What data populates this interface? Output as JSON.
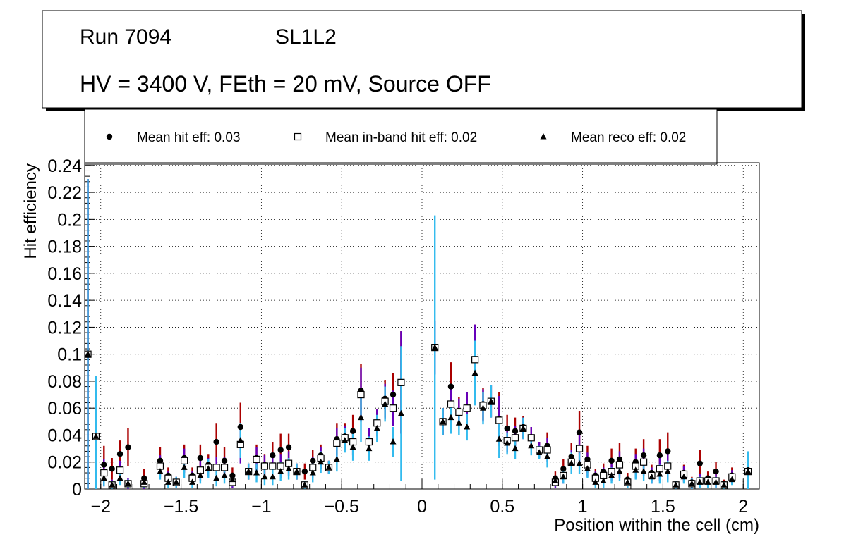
{
  "title_box": {
    "line1_left": "Run 7094",
    "line1_right": "SL1L2",
    "line2": "HV = 3400 V, FEth = 20 mV, Source OFF"
  },
  "chart_data": {
    "type": "scatter",
    "xlabel": "Position within the cell (cm)",
    "ylabel": "Hit efficiency",
    "xlim": [
      -2.1,
      2.1
    ],
    "ylim": [
      0,
      0.242
    ],
    "grid": true,
    "x_ticks": [
      -2,
      -1.5,
      -1,
      -0.5,
      0,
      0.5,
      1,
      1.5,
      2
    ],
    "x_tick_labels": [
      "−2",
      "−1.5",
      "−1",
      "−0.5",
      "0",
      "0.5",
      "1",
      "1.5",
      "2"
    ],
    "y_ticks": [
      0,
      0.02,
      0.04,
      0.06,
      0.08,
      0.1,
      0.12,
      0.14,
      0.16,
      0.18,
      0.2,
      0.22,
      0.24
    ],
    "y_tick_labels": [
      "0",
      "0.02",
      "0.04",
      "0.06",
      "0.08",
      "0.1",
      "0.12",
      "0.14",
      "0.16",
      "0.18",
      "0.2",
      "0.22",
      "0.24"
    ],
    "legend": {
      "position": "top",
      "entries": [
        {
          "marker": "circle",
          "label": "Mean hit  eff: 0.03"
        },
        {
          "marker": "open-square",
          "label": "Mean in-band hit eff: 0.02"
        },
        {
          "marker": "triangle",
          "label": "Mean reco eff: 0.02"
        }
      ]
    },
    "series": [
      {
        "name": "Mean hit eff",
        "marker": "circle",
        "color": "#000000",
        "error_color": "#aa0000",
        "x": [
          -2.08,
          -2.03,
          -1.98,
          -1.93,
          -1.88,
          -1.83,
          -1.73,
          -1.63,
          -1.58,
          -1.53,
          -1.48,
          -1.43,
          -1.38,
          -1.33,
          -1.28,
          -1.23,
          -1.18,
          -1.13,
          -1.08,
          -1.03,
          -0.98,
          -0.93,
          -0.88,
          -0.83,
          -0.78,
          -0.73,
          -0.68,
          -0.63,
          -0.58,
          -0.53,
          -0.48,
          -0.43,
          -0.38,
          -0.33,
          -0.28,
          -0.23,
          -0.18,
          -0.13,
          0.08,
          0.13,
          0.18,
          0.23,
          0.28,
          0.33,
          0.38,
          0.43,
          0.48,
          0.53,
          0.58,
          0.63,
          0.68,
          0.73,
          0.78,
          0.83,
          0.88,
          0.93,
          0.98,
          1.03,
          1.08,
          1.13,
          1.18,
          1.23,
          1.28,
          1.33,
          1.38,
          1.43,
          1.48,
          1.53,
          1.58,
          1.63,
          1.68,
          1.73,
          1.78,
          1.83,
          1.88,
          1.93,
          2.03
        ],
        "y": [
          0.1,
          0.039,
          0.018,
          0.015,
          0.026,
          0.031,
          0.008,
          0.021,
          0.01,
          0.005,
          0.023,
          0.01,
          0.023,
          0.018,
          0.035,
          0.021,
          0.01,
          0.046,
          0.013,
          0.023,
          0.018,
          0.025,
          0.029,
          0.031,
          0.013,
          0.013,
          0.021,
          0.025,
          0.016,
          0.037,
          0.039,
          0.043,
          0.073,
          0.034,
          0.049,
          0.067,
          0.07,
          0.079,
          0.105,
          0.05,
          0.076,
          0.058,
          0.06,
          0.096,
          0.063,
          0.065,
          0.052,
          0.045,
          0.043,
          0.046,
          0.038,
          0.029,
          0.032,
          0.008,
          0.015,
          0.024,
          0.042,
          0.022,
          0.01,
          0.013,
          0.021,
          0.022,
          0.007,
          0.02,
          0.025,
          0.012,
          0.025,
          0.028,
          0.003,
          0.012,
          0.005,
          0.019,
          0.008,
          0.013,
          0.004,
          0.01,
          0.014
        ],
        "err": [
          0.13,
          0.01,
          0.014,
          0.008,
          0.01,
          0.014,
          0.007,
          0.01,
          0.006,
          0.004,
          0.01,
          0.006,
          0.01,
          0.008,
          0.014,
          0.01,
          0.006,
          0.018,
          0.006,
          0.01,
          0.008,
          0.01,
          0.012,
          0.01,
          0.006,
          0.006,
          0.008,
          0.008,
          0.005,
          0.012,
          0.01,
          0.012,
          0.02,
          0.01,
          0.01,
          0.014,
          0.016,
          0.038,
          0.02,
          0.01,
          0.018,
          0.01,
          0.012,
          0.026,
          0.012,
          0.012,
          0.02,
          0.01,
          0.01,
          0.008,
          0.008,
          0.006,
          0.01,
          0.005,
          0.007,
          0.01,
          0.016,
          0.01,
          0.005,
          0.006,
          0.009,
          0.012,
          0.005,
          0.01,
          0.012,
          0.006,
          0.012,
          0.014,
          0.003,
          0.006,
          0.004,
          0.01,
          0.005,
          0.007,
          0.003,
          0.006,
          0.007
        ]
      },
      {
        "name": "Mean in-band hit eff",
        "marker": "open-square",
        "color": "#000000",
        "error_color": "#6600bb",
        "x": [
          -2.08,
          -2.03,
          -1.98,
          -1.93,
          -1.88,
          -1.83,
          -1.73,
          -1.63,
          -1.58,
          -1.53,
          -1.48,
          -1.43,
          -1.38,
          -1.33,
          -1.28,
          -1.23,
          -1.18,
          -1.13,
          -1.08,
          -1.03,
          -0.98,
          -0.93,
          -0.88,
          -0.83,
          -0.78,
          -0.73,
          -0.68,
          -0.63,
          -0.58,
          -0.53,
          -0.48,
          -0.43,
          -0.38,
          -0.33,
          -0.28,
          -0.23,
          -0.18,
          -0.13,
          0.08,
          0.13,
          0.18,
          0.23,
          0.28,
          0.33,
          0.38,
          0.43,
          0.48,
          0.53,
          0.58,
          0.63,
          0.68,
          0.73,
          0.78,
          0.83,
          0.88,
          0.93,
          0.98,
          1.03,
          1.08,
          1.13,
          1.18,
          1.23,
          1.28,
          1.33,
          1.38,
          1.43,
          1.48,
          1.53,
          1.58,
          1.63,
          1.68,
          1.73,
          1.78,
          1.83,
          1.88,
          1.93,
          2.03
        ],
        "y": [
          0.1,
          0.039,
          0.012,
          0.003,
          0.014,
          0.004,
          0.004,
          0.017,
          0.008,
          0.005,
          0.021,
          0.008,
          0.014,
          0.016,
          0.016,
          0.016,
          0.005,
          0.033,
          0.013,
          0.022,
          0.017,
          0.017,
          0.017,
          0.019,
          0.013,
          0.003,
          0.016,
          0.023,
          0.016,
          0.034,
          0.038,
          0.035,
          0.07,
          0.035,
          0.049,
          0.065,
          0.06,
          0.079,
          0.105,
          0.05,
          0.063,
          0.057,
          0.06,
          0.096,
          0.062,
          0.065,
          0.051,
          0.036,
          0.038,
          0.045,
          0.038,
          0.029,
          0.029,
          0.005,
          0.01,
          0.02,
          0.03,
          0.018,
          0.008,
          0.01,
          0.013,
          0.018,
          0.005,
          0.017,
          0.02,
          0.01,
          0.015,
          0.017,
          0.003,
          0.011,
          0.004,
          0.006,
          0.006,
          0.006,
          0.003,
          0.009,
          0.013
        ],
        "err": [
          0.13,
          0.01,
          0.01,
          0.004,
          0.007,
          0.004,
          0.004,
          0.008,
          0.005,
          0.004,
          0.009,
          0.005,
          0.008,
          0.007,
          0.008,
          0.008,
          0.004,
          0.014,
          0.006,
          0.009,
          0.008,
          0.009,
          0.009,
          0.009,
          0.006,
          0.003,
          0.008,
          0.008,
          0.005,
          0.011,
          0.009,
          0.01,
          0.02,
          0.01,
          0.01,
          0.013,
          0.013,
          0.038,
          0.02,
          0.01,
          0.014,
          0.01,
          0.012,
          0.026,
          0.012,
          0.012,
          0.018,
          0.009,
          0.009,
          0.008,
          0.008,
          0.006,
          0.009,
          0.004,
          0.006,
          0.009,
          0.01,
          0.009,
          0.005,
          0.006,
          0.007,
          0.01,
          0.004,
          0.009,
          0.01,
          0.006,
          0.009,
          0.01,
          0.003,
          0.006,
          0.004,
          0.005,
          0.004,
          0.005,
          0.003,
          0.005,
          0.007
        ]
      },
      {
        "name": "Mean reco eff",
        "marker": "triangle",
        "color": "#000000",
        "error_color": "#33bbee",
        "x": [
          -2.08,
          -2.03,
          -1.98,
          -1.93,
          -1.88,
          -1.83,
          -1.73,
          -1.63,
          -1.58,
          -1.53,
          -1.48,
          -1.43,
          -1.38,
          -1.33,
          -1.28,
          -1.23,
          -1.18,
          -1.13,
          -1.08,
          -1.03,
          -0.98,
          -0.93,
          -0.88,
          -0.83,
          -0.78,
          -0.73,
          -0.68,
          -0.63,
          -0.58,
          -0.53,
          -0.48,
          -0.43,
          -0.38,
          -0.33,
          -0.28,
          -0.23,
          -0.18,
          -0.13,
          0.08,
          0.13,
          0.18,
          0.23,
          0.28,
          0.33,
          0.38,
          0.43,
          0.48,
          0.53,
          0.58,
          0.63,
          0.68,
          0.73,
          0.78,
          0.83,
          0.88,
          0.93,
          0.98,
          1.03,
          1.08,
          1.13,
          1.18,
          1.23,
          1.28,
          1.33,
          1.38,
          1.43,
          1.48,
          1.53,
          1.58,
          1.63,
          1.68,
          1.73,
          1.78,
          1.83,
          1.88,
          1.93,
          2.03
        ],
        "y": [
          0.1,
          0.039,
          0.008,
          0.003,
          0.008,
          0.004,
          0.005,
          0.013,
          0.005,
          0.005,
          0.016,
          0.005,
          0.01,
          0.015,
          0.008,
          0.01,
          0.007,
          0.036,
          0.013,
          0.012,
          0.009,
          0.009,
          0.013,
          0.015,
          0.013,
          0.003,
          0.012,
          0.02,
          0.016,
          0.022,
          0.036,
          0.031,
          0.053,
          0.03,
          0.045,
          0.063,
          0.035,
          0.056,
          0.105,
          0.05,
          0.053,
          0.049,
          0.046,
          0.086,
          0.06,
          0.065,
          0.037,
          0.034,
          0.03,
          0.045,
          0.032,
          0.027,
          0.024,
          0.006,
          0.009,
          0.019,
          0.019,
          0.015,
          0.005,
          0.006,
          0.01,
          0.013,
          0.005,
          0.014,
          0.013,
          0.009,
          0.011,
          0.013,
          0.003,
          0.009,
          0.004,
          0.005,
          0.005,
          0.005,
          0.003,
          0.007,
          0.013
        ],
        "err": [
          0.13,
          0.045,
          0.006,
          0.003,
          0.005,
          0.003,
          0.004,
          0.006,
          0.004,
          0.004,
          0.008,
          0.004,
          0.006,
          0.007,
          0.006,
          0.006,
          0.005,
          0.013,
          0.006,
          0.007,
          0.006,
          0.006,
          0.007,
          0.008,
          0.006,
          0.003,
          0.007,
          0.008,
          0.005,
          0.009,
          0.009,
          0.01,
          0.018,
          0.009,
          0.01,
          0.013,
          0.011,
          0.05,
          0.098,
          0.01,
          0.012,
          0.009,
          0.01,
          0.024,
          0.012,
          0.012,
          0.014,
          0.008,
          0.008,
          0.008,
          0.007,
          0.005,
          0.008,
          0.004,
          0.005,
          0.008,
          0.008,
          0.007,
          0.004,
          0.005,
          0.006,
          0.007,
          0.004,
          0.007,
          0.007,
          0.005,
          0.007,
          0.008,
          0.003,
          0.005,
          0.004,
          0.004,
          0.004,
          0.004,
          0.003,
          0.004,
          0.015
        ]
      }
    ]
  }
}
